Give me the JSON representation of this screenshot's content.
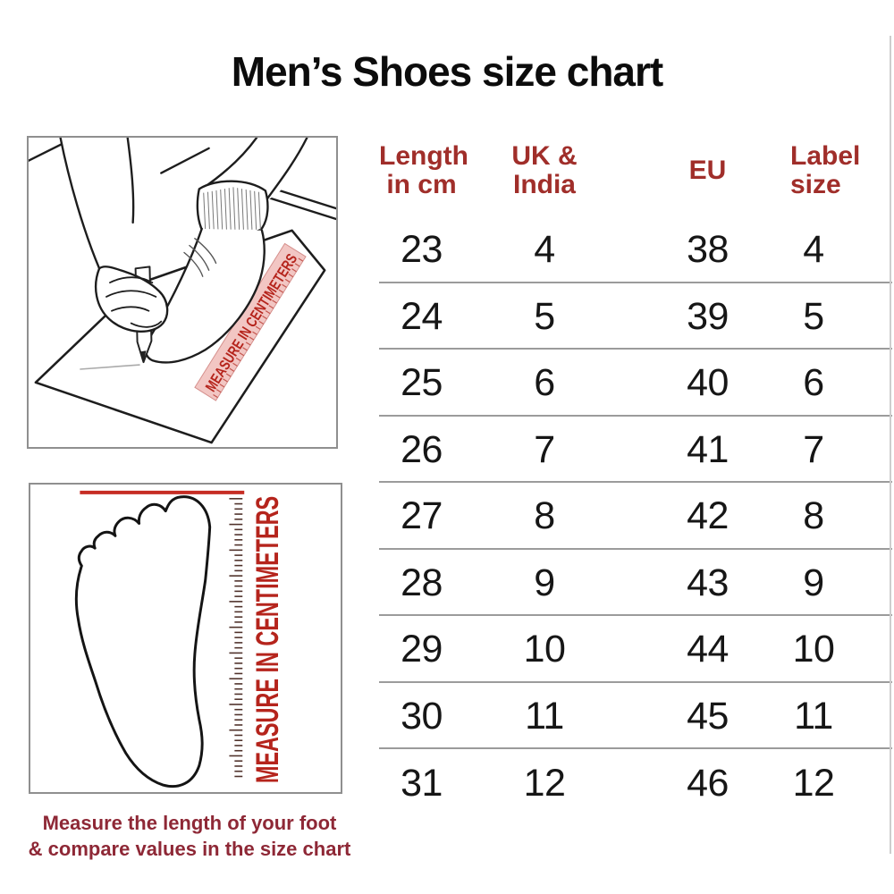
{
  "title": "Men’s Shoes size chart",
  "table": {
    "headers": [
      [
        "Length",
        "in cm"
      ],
      [
        "UK &",
        "India"
      ],
      [
        "EU"
      ],
      [
        "Label",
        "size"
      ]
    ],
    "rows": [
      [
        "23",
        "4",
        "38",
        "4"
      ],
      [
        "24",
        "5",
        "39",
        "5"
      ],
      [
        "25",
        "6",
        "40",
        "6"
      ],
      [
        "26",
        "7",
        "41",
        "7"
      ],
      [
        "27",
        "8",
        "42",
        "8"
      ],
      [
        "28",
        "9",
        "43",
        "9"
      ],
      [
        "29",
        "10",
        "44",
        "10"
      ],
      [
        "30",
        "11",
        "45",
        "11"
      ],
      [
        "31",
        "12",
        "46",
        "12"
      ]
    ]
  },
  "illustrations": {
    "top": {
      "ruler_label": "MEASURE IN CENTIMETERS"
    },
    "bottom": {
      "ruler_label": "MEASURE IN CENTIMETERS"
    }
  },
  "caption": {
    "line1": "Measure the length of your foot",
    "line2": "& compare values in the size chart"
  },
  "colors": {
    "header_red": "#a02e2a",
    "accent_red": "#c62d24",
    "ruler_text_red": "#b5241c",
    "caption_maroon": "#8e2836",
    "separator_gray": "#9b9b9b"
  }
}
